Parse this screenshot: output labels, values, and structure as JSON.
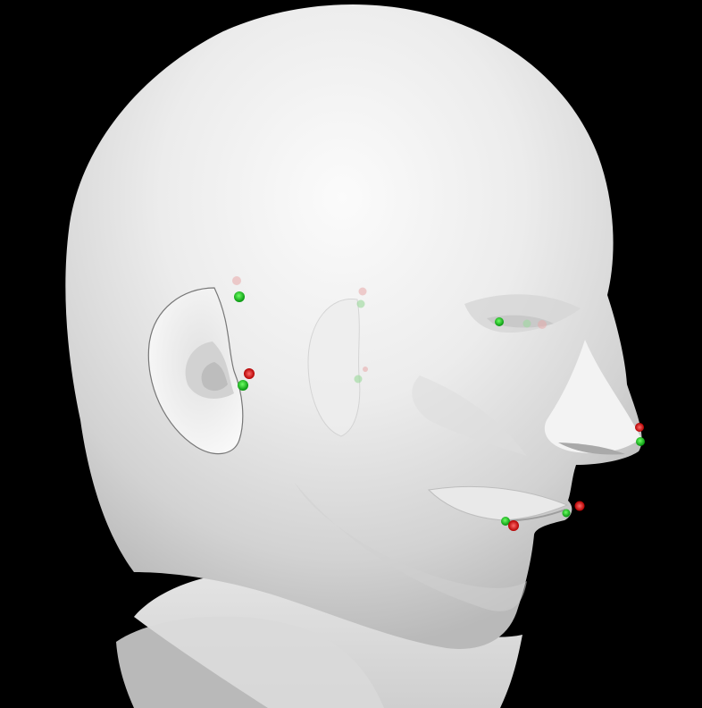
{
  "scene": {
    "background_color": "#000000",
    "model_color": "#e6e6e6",
    "subject": "3D head model",
    "landmark_colors": {
      "predicted": "#11c81a",
      "ground_truth": "#dd1111"
    },
    "landmarks": [
      {
        "id": "right-ear-top",
        "side": "near",
        "visible": true
      },
      {
        "id": "right-tragus",
        "side": "near",
        "visible": true
      },
      {
        "id": "left-ear-top",
        "side": "far",
        "visible": false
      },
      {
        "id": "left-tragus",
        "side": "far",
        "visible": false
      },
      {
        "id": "right-eye-outer-corner",
        "side": "near",
        "visible": true
      },
      {
        "id": "left-eye-corner",
        "side": "far",
        "visible": false
      },
      {
        "id": "nose-tip",
        "side": "near",
        "visible": true
      },
      {
        "id": "mouth-corner",
        "side": "near",
        "visible": true
      },
      {
        "id": "upper-lip",
        "side": "near",
        "visible": true
      }
    ]
  }
}
